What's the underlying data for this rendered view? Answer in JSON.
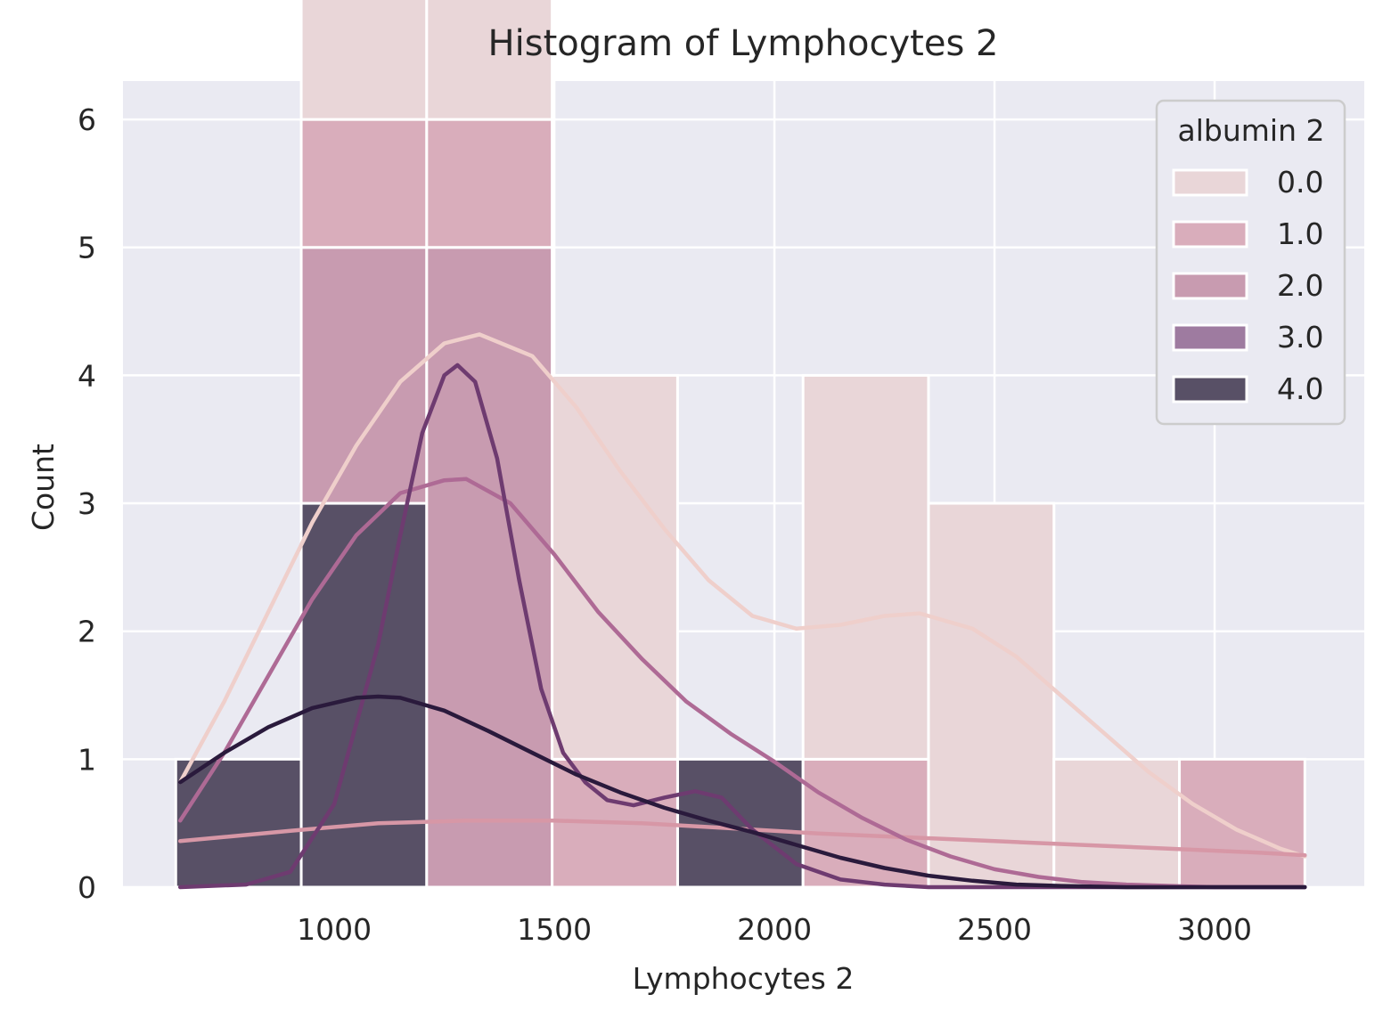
{
  "chart_data": {
    "type": "bar",
    "title": "Histogram of Lymphocytes 2",
    "xlabel": "Lymphocytes 2",
    "ylabel": "Count",
    "xlim": [
      520,
      3340
    ],
    "ylim": [
      0,
      6.3
    ],
    "xticks": [
      1000,
      1500,
      2000,
      2500,
      3000
    ],
    "yticks": [
      0,
      1,
      2,
      3,
      4,
      5,
      6
    ],
    "grid": true,
    "legend": {
      "title": "albumin 2",
      "placement": "top-right"
    },
    "bin_edges": [
      640,
      925,
      1210,
      1495,
      1780,
      2065,
      2350,
      2635,
      2920,
      3205
    ],
    "series": [
      {
        "name": "0.0",
        "color": "#e8d2d4",
        "counts": [
          0,
          5,
          6,
          3,
          0,
          3,
          3,
          1,
          0
        ],
        "kde_x": [
          650,
          750,
          850,
          950,
          1050,
          1150,
          1250,
          1330,
          1450,
          1550,
          1650,
          1750,
          1850,
          1950,
          2050,
          2150,
          2250,
          2330,
          2450,
          2550,
          2650,
          2750,
          2850,
          2950,
          3050,
          3150,
          3205
        ],
        "kde_y": [
          0.82,
          1.45,
          2.15,
          2.85,
          3.45,
          3.95,
          4.25,
          4.32,
          4.15,
          3.75,
          3.25,
          2.8,
          2.4,
          2.12,
          2.02,
          2.05,
          2.12,
          2.14,
          2.02,
          1.8,
          1.5,
          1.2,
          0.9,
          0.65,
          0.45,
          0.3,
          0.24
        ]
      },
      {
        "name": "1.0",
        "color": "#dbb4c0",
        "counts": [
          0,
          1,
          1,
          1,
          0,
          1,
          0,
          0,
          1
        ],
        "kde_x": [
          650,
          900,
          1100,
          1300,
          1500,
          1700,
          1900,
          2100,
          2300,
          2500,
          2700,
          2900,
          3100,
          3205
        ],
        "kde_y": [
          0.36,
          0.44,
          0.5,
          0.52,
          0.52,
          0.5,
          0.46,
          0.42,
          0.39,
          0.36,
          0.33,
          0.3,
          0.27,
          0.25
        ]
      },
      {
        "name": "2.0",
        "color": "#c698ad",
        "counts": [
          0,
          2,
          5,
          0,
          0,
          0,
          0,
          0,
          0
        ],
        "kde_x": [
          650,
          750,
          850,
          950,
          1050,
          1150,
          1250,
          1300,
          1400,
          1500,
          1600,
          1700,
          1800,
          1900,
          2000,
          2100,
          2200,
          2300,
          2400,
          2500,
          2600,
          2700,
          2800,
          2900,
          3000,
          3205
        ],
        "kde_y": [
          0.52,
          1.05,
          1.65,
          2.25,
          2.75,
          3.08,
          3.18,
          3.19,
          3.0,
          2.6,
          2.15,
          1.78,
          1.45,
          1.2,
          0.98,
          0.74,
          0.54,
          0.37,
          0.24,
          0.14,
          0.08,
          0.04,
          0.02,
          0.01,
          0.0,
          0.0
        ]
      },
      {
        "name": "3.0",
        "color": "#9b7b9e",
        "counts": [
          0,
          0,
          0,
          0,
          0,
          0,
          0,
          0,
          0
        ],
        "kde_x": [
          650,
          800,
          900,
          1000,
          1100,
          1150,
          1200,
          1250,
          1280,
          1320,
          1370,
          1420,
          1470,
          1520,
          1570,
          1620,
          1680,
          1750,
          1820,
          1880,
          1950,
          2050,
          2150,
          2250,
          2350,
          2500,
          3205
        ],
        "kde_y": [
          0.0,
          0.02,
          0.12,
          0.65,
          1.9,
          2.75,
          3.55,
          4.0,
          4.08,
          3.95,
          3.35,
          2.4,
          1.55,
          1.05,
          0.82,
          0.68,
          0.64,
          0.7,
          0.75,
          0.7,
          0.45,
          0.18,
          0.06,
          0.02,
          0.0,
          0.0,
          0.0
        ]
      },
      {
        "name": "4.0",
        "color": "#594765",
        "counts": [
          1,
          3,
          0,
          0,
          1,
          0,
          0,
          0,
          0
        ],
        "kde_x": [
          650,
          750,
          850,
          950,
          1050,
          1100,
          1150,
          1250,
          1350,
          1450,
          1550,
          1650,
          1750,
          1850,
          1950,
          2050,
          2150,
          2250,
          2350,
          2450,
          2550,
          2650,
          2800,
          3205
        ],
        "kde_y": [
          0.82,
          1.05,
          1.25,
          1.4,
          1.48,
          1.49,
          1.48,
          1.38,
          1.22,
          1.05,
          0.88,
          0.74,
          0.62,
          0.52,
          0.43,
          0.33,
          0.23,
          0.15,
          0.09,
          0.05,
          0.02,
          0.01,
          0.0,
          0.0
        ]
      }
    ],
    "kde_line_colors": [
      "#efcfcb",
      "#d797a6",
      "#ae6a95",
      "#6e3b70",
      "#2a1a3c"
    ],
    "bar_fill_colors": [
      "#e9d6d8",
      "#d9adbb",
      "#c89bb0",
      "#9e7ba0",
      "#585066"
    ]
  }
}
